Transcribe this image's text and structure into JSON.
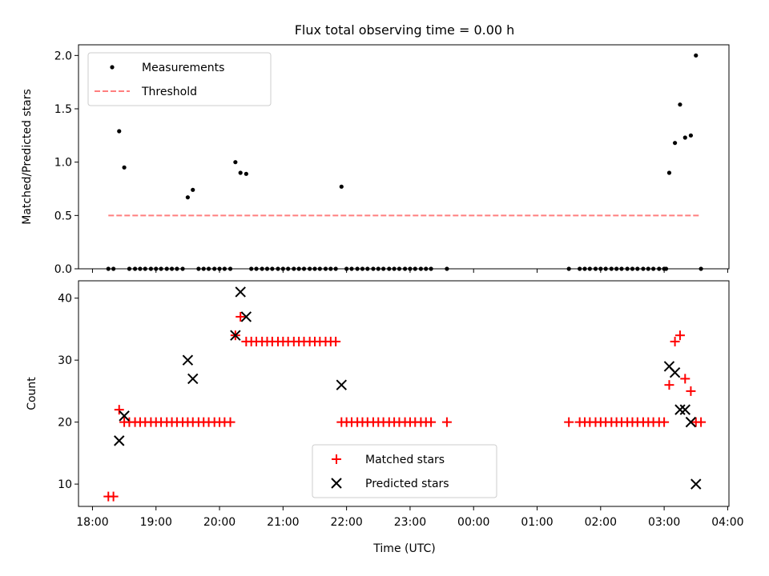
{
  "figure": {
    "title": "Flux total observing time = 0.00 h"
  },
  "chart_data": [
    {
      "type": "scatter",
      "ylabel": "Matched/Predicted stars",
      "xlabel": "",
      "x_unit": "hours since 18:00 UTC",
      "xlim": [
        -0.22,
        10.02
      ],
      "ylim": [
        0,
        2.1
      ],
      "yticks": [
        0.0,
        0.5,
        1.0,
        1.5,
        2.0
      ],
      "ytick_labels": [
        "0.0",
        "0.5",
        "1.0",
        "1.5",
        "2.0"
      ],
      "grid": false,
      "legend": "upper-left",
      "series": [
        {
          "name": "Measurements",
          "kind": "dot",
          "color": "#000000",
          "points": [
            [
              0.25,
              0
            ],
            [
              0.33,
              0
            ],
            [
              0.42,
              1.29
            ],
            [
              0.5,
              0.95
            ],
            [
              0.58,
              0
            ],
            [
              0.67,
              0
            ],
            [
              0.75,
              0
            ],
            [
              0.83,
              0
            ],
            [
              0.92,
              0
            ],
            [
              1.0,
              0
            ],
            [
              1.08,
              0
            ],
            [
              1.17,
              0
            ],
            [
              1.25,
              0
            ],
            [
              1.33,
              0
            ],
            [
              1.42,
              0
            ],
            [
              1.5,
              0.67
            ],
            [
              1.58,
              0.74
            ],
            [
              1.67,
              0
            ],
            [
              1.75,
              0
            ],
            [
              1.83,
              0
            ],
            [
              1.92,
              0
            ],
            [
              2.0,
              0
            ],
            [
              2.08,
              0
            ],
            [
              2.17,
              0
            ],
            [
              2.25,
              1.0
            ],
            [
              2.33,
              0.9
            ],
            [
              2.42,
              0.89
            ],
            [
              2.5,
              0
            ],
            [
              2.58,
              0
            ],
            [
              2.67,
              0
            ],
            [
              2.75,
              0
            ],
            [
              2.83,
              0
            ],
            [
              2.92,
              0
            ],
            [
              3.0,
              0
            ],
            [
              3.08,
              0
            ],
            [
              3.17,
              0
            ],
            [
              3.25,
              0
            ],
            [
              3.33,
              0
            ],
            [
              3.42,
              0
            ],
            [
              3.5,
              0
            ],
            [
              3.58,
              0
            ],
            [
              3.67,
              0
            ],
            [
              3.75,
              0
            ],
            [
              3.83,
              0
            ],
            [
              3.92,
              0.77
            ],
            [
              4.0,
              0
            ],
            [
              4.08,
              0
            ],
            [
              4.17,
              0
            ],
            [
              4.25,
              0
            ],
            [
              4.33,
              0
            ],
            [
              4.42,
              0
            ],
            [
              4.5,
              0
            ],
            [
              4.58,
              0
            ],
            [
              4.67,
              0
            ],
            [
              4.75,
              0
            ],
            [
              4.83,
              0
            ],
            [
              4.92,
              0
            ],
            [
              5.0,
              0
            ],
            [
              5.08,
              0
            ],
            [
              5.17,
              0
            ],
            [
              5.25,
              0
            ],
            [
              5.33,
              0
            ],
            [
              5.58,
              0
            ],
            [
              7.5,
              0
            ],
            [
              7.67,
              0
            ],
            [
              7.75,
              0
            ],
            [
              7.83,
              0
            ],
            [
              7.92,
              0
            ],
            [
              8.0,
              0
            ],
            [
              8.08,
              0
            ],
            [
              8.17,
              0
            ],
            [
              8.25,
              0
            ],
            [
              8.33,
              0
            ],
            [
              8.42,
              0
            ],
            [
              8.5,
              0
            ],
            [
              8.58,
              0
            ],
            [
              8.67,
              0
            ],
            [
              8.75,
              0
            ],
            [
              8.83,
              0
            ],
            [
              8.92,
              0
            ],
            [
              9.0,
              0
            ],
            [
              9.03,
              0
            ],
            [
              9.08,
              0.9
            ],
            [
              9.17,
              1.18
            ],
            [
              9.25,
              1.54
            ],
            [
              9.33,
              1.23
            ],
            [
              9.42,
              1.25
            ],
            [
              9.5,
              2.0
            ],
            [
              9.58,
              0
            ]
          ]
        },
        {
          "name": "Threshold",
          "kind": "dashed-line",
          "color": "#ff7f7f",
          "points": [
            [
              0.25,
              0.5
            ],
            [
              9.58,
              0.5
            ]
          ]
        }
      ]
    },
    {
      "type": "scatter",
      "ylabel": "Count",
      "xlabel": "Time (UTC)",
      "x_unit": "hours since 18:00 UTC",
      "xlim": [
        -0.22,
        10.02
      ],
      "ylim": [
        6.4,
        42.8
      ],
      "yticks": [
        10,
        20,
        30,
        40
      ],
      "ytick_labels": [
        "10",
        "20",
        "30",
        "40"
      ],
      "xticks": [
        0,
        1,
        2,
        3,
        4,
        5,
        6,
        7,
        8,
        9,
        10
      ],
      "xtick_labels": [
        "18:00",
        "19:00",
        "20:00",
        "21:00",
        "22:00",
        "23:00",
        "00:00",
        "01:00",
        "02:00",
        "03:00",
        "04:00"
      ],
      "grid": false,
      "legend": "lower-center",
      "series": [
        {
          "name": "Matched stars",
          "kind": "plus",
          "color": "#ff0000",
          "points": [
            [
              0.25,
              8
            ],
            [
              0.33,
              8
            ],
            [
              0.42,
              22
            ],
            [
              0.5,
              20
            ],
            [
              0.58,
              20
            ],
            [
              0.67,
              20
            ],
            [
              0.75,
              20
            ],
            [
              0.83,
              20
            ],
            [
              0.92,
              20
            ],
            [
              1.0,
              20
            ],
            [
              1.08,
              20
            ],
            [
              1.17,
              20
            ],
            [
              1.25,
              20
            ],
            [
              1.33,
              20
            ],
            [
              1.42,
              20
            ],
            [
              1.5,
              20
            ],
            [
              1.58,
              20
            ],
            [
              1.67,
              20
            ],
            [
              1.75,
              20
            ],
            [
              1.83,
              20
            ],
            [
              1.92,
              20
            ],
            [
              2.0,
              20
            ],
            [
              2.08,
              20
            ],
            [
              2.17,
              20
            ],
            [
              2.25,
              34
            ],
            [
              2.33,
              37
            ],
            [
              2.42,
              33
            ],
            [
              2.5,
              33
            ],
            [
              2.58,
              33
            ],
            [
              2.67,
              33
            ],
            [
              2.75,
              33
            ],
            [
              2.83,
              33
            ],
            [
              2.92,
              33
            ],
            [
              3.0,
              33
            ],
            [
              3.08,
              33
            ],
            [
              3.17,
              33
            ],
            [
              3.25,
              33
            ],
            [
              3.33,
              33
            ],
            [
              3.42,
              33
            ],
            [
              3.5,
              33
            ],
            [
              3.58,
              33
            ],
            [
              3.67,
              33
            ],
            [
              3.75,
              33
            ],
            [
              3.83,
              33
            ],
            [
              3.92,
              20
            ],
            [
              4.0,
              20
            ],
            [
              4.08,
              20
            ],
            [
              4.17,
              20
            ],
            [
              4.25,
              20
            ],
            [
              4.33,
              20
            ],
            [
              4.42,
              20
            ],
            [
              4.5,
              20
            ],
            [
              4.58,
              20
            ],
            [
              4.67,
              20
            ],
            [
              4.75,
              20
            ],
            [
              4.83,
              20
            ],
            [
              4.92,
              20
            ],
            [
              5.0,
              20
            ],
            [
              5.08,
              20
            ],
            [
              5.17,
              20
            ],
            [
              5.25,
              20
            ],
            [
              5.33,
              20
            ],
            [
              5.58,
              20
            ],
            [
              7.5,
              20
            ],
            [
              7.67,
              20
            ],
            [
              7.75,
              20
            ],
            [
              7.83,
              20
            ],
            [
              7.92,
              20
            ],
            [
              8.0,
              20
            ],
            [
              8.08,
              20
            ],
            [
              8.17,
              20
            ],
            [
              8.25,
              20
            ],
            [
              8.33,
              20
            ],
            [
              8.42,
              20
            ],
            [
              8.5,
              20
            ],
            [
              8.58,
              20
            ],
            [
              8.67,
              20
            ],
            [
              8.75,
              20
            ],
            [
              8.83,
              20
            ],
            [
              8.92,
              20
            ],
            [
              9.0,
              20
            ],
            [
              9.08,
              26
            ],
            [
              9.17,
              33
            ],
            [
              9.25,
              34
            ],
            [
              9.33,
              27
            ],
            [
              9.42,
              25
            ],
            [
              9.5,
              20
            ],
            [
              9.58,
              20
            ]
          ]
        },
        {
          "name": "Predicted stars",
          "kind": "x",
          "color": "#000000",
          "points": [
            [
              0.42,
              17
            ],
            [
              0.5,
              21
            ],
            [
              1.5,
              30
            ],
            [
              1.58,
              27
            ],
            [
              2.25,
              34
            ],
            [
              2.33,
              41
            ],
            [
              2.42,
              37
            ],
            [
              3.92,
              26
            ],
            [
              9.08,
              29
            ],
            [
              9.17,
              28
            ],
            [
              9.25,
              22
            ],
            [
              9.33,
              22
            ],
            [
              9.42,
              20
            ],
            [
              9.5,
              10
            ]
          ]
        }
      ]
    }
  ]
}
